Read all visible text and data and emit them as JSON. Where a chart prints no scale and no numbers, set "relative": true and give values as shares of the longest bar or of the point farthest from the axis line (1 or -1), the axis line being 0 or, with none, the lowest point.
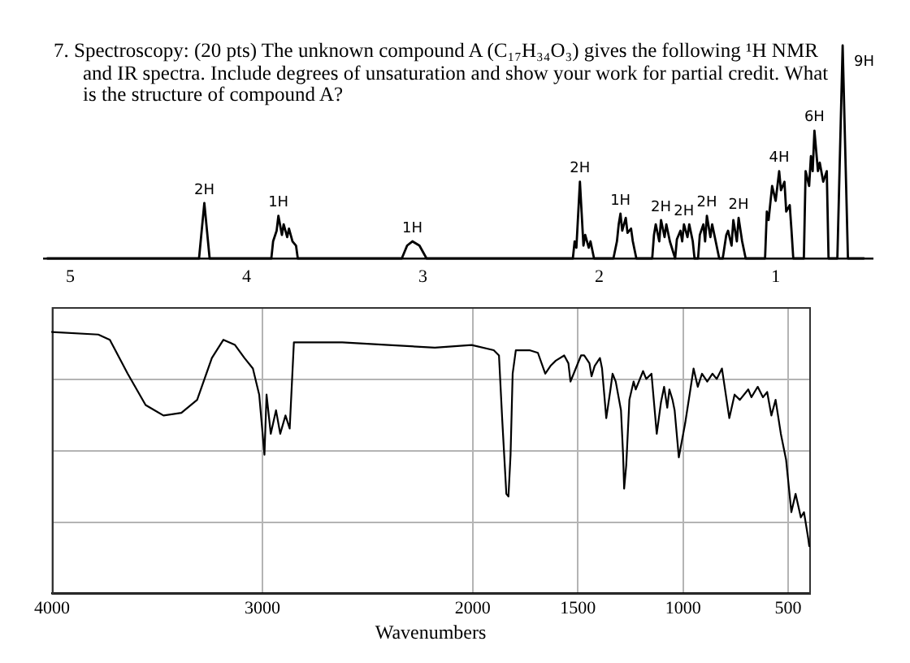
{
  "chart_data": [
    {
      "type": "line",
      "title": "7. Spectroscopy: (20 pts) The unknown compound A (C₁₇H₃₄O₃) gives the following ¹H NMR and IR spectra. Include degrees of unsaturation and show your work for partial credit. What is the structure of compound A?",
      "relative": true,
      "marker": "none",
      "x": [
        5.13,
        4.27,
        4.24,
        4.21,
        3.86,
        3.85,
        3.83,
        3.82,
        3.8,
        3.79,
        3.77,
        3.76,
        3.74,
        3.72,
        3.71,
        3.12,
        3.09,
        3.06,
        3.02,
        2.98,
        2.15,
        2.14,
        2.13,
        2.11,
        2.09,
        2.08,
        2.06,
        2.05,
        2.03,
        1.92,
        1.9,
        1.89,
        1.88,
        1.87,
        1.85,
        1.84,
        1.82,
        1.81,
        1.79,
        1.7,
        1.69,
        1.68,
        1.66,
        1.65,
        1.63,
        1.62,
        1.6,
        1.57,
        1.56,
        1.54,
        1.53,
        1.52,
        1.5,
        1.49,
        1.47,
        1.46,
        1.44,
        1.43,
        1.41,
        1.4,
        1.39,
        1.37,
        1.36,
        1.34,
        1.32,
        1.3,
        1.28,
        1.27,
        1.25,
        1.24,
        1.22,
        1.21,
        1.19,
        1.17,
        1.06,
        1.05,
        1.04,
        1.02,
        1.0,
        0.98,
        0.97,
        0.95,
        0.94,
        0.92,
        0.91,
        0.9,
        0.84,
        0.83,
        0.81,
        0.8,
        0.79,
        0.78,
        0.76,
        0.75,
        0.73,
        0.71,
        0.7,
        0.65,
        0.62,
        0.59,
        0.5
      ],
      "series": [
        {
          "color": "#000000",
          "values": [
            0,
            0,
            0.26,
            0,
            0,
            0.08,
            0.13,
            0.2,
            0.11,
            0.16,
            0.1,
            0.14,
            0.08,
            0.06,
            0,
            0,
            0.06,
            0.08,
            0.06,
            0,
            0,
            0.08,
            0.05,
            0.36,
            0.06,
            0.11,
            0.05,
            0.08,
            0,
            0,
            0.08,
            0.16,
            0.21,
            0.13,
            0.19,
            0.12,
            0.14,
            0.08,
            0,
            0,
            0.11,
            0.16,
            0.08,
            0.18,
            0.1,
            0.16,
            0.08,
            0,
            0.09,
            0.13,
            0.08,
            0.16,
            0.1,
            0.16,
            0.08,
            0,
            0,
            0.11,
            0.16,
            0.08,
            0.2,
            0.1,
            0.16,
            0.08,
            0,
            0,
            0.11,
            0.13,
            0.06,
            0.18,
            0.08,
            0.19,
            0.08,
            0,
            0,
            0.22,
            0.18,
            0.34,
            0.27,
            0.41,
            0.32,
            0.36,
            0.22,
            0.25,
            0.13,
            0,
            0,
            0.41,
            0.34,
            0.48,
            0.41,
            0.6,
            0.41,
            0.45,
            0.36,
            0.41,
            0,
            0,
            1,
            0,
            0
          ]
        }
      ],
      "xlim": [
        5.15,
        0.45
      ],
      "xticks": [
        5,
        4,
        3,
        2,
        1
      ],
      "annotations": [
        {
          "text": "2H",
          "x": 4.24,
          "y": 0.26
        },
        {
          "text": "1H",
          "x": 3.82,
          "y": 0.2
        },
        {
          "text": "1H",
          "x": 3.06,
          "y": 0.08
        },
        {
          "text": "2H",
          "x": 2.11,
          "y": 0.36
        },
        {
          "text": "1H",
          "x": 1.88,
          "y": 0.21
        },
        {
          "text": "2H",
          "x": 1.65,
          "y": 0.18
        },
        {
          "text": "2H",
          "x": 1.52,
          "y": 0.16
        },
        {
          "text": "2H",
          "x": 1.39,
          "y": 0.2
        },
        {
          "text": "2H",
          "x": 1.21,
          "y": 0.19
        },
        {
          "text": "4H",
          "x": 0.98,
          "y": 0.41
        },
        {
          "text": "6H",
          "x": 0.78,
          "y": 0.6
        },
        {
          "text": "9H",
          "x": 0.62,
          "y": 1
        }
      ]
    },
    {
      "type": "line",
      "relative": true,
      "marker": "none",
      "grid": true,
      "xlabel": "Wavenumbers",
      "x": [
        4000,
        3780,
        3725,
        3640,
        3555,
        3470,
        3385,
        3310,
        3240,
        3185,
        3130,
        3085,
        3045,
        3015,
        2990,
        2980,
        2960,
        2935,
        2915,
        2890,
        2870,
        2850,
        2620,
        2400,
        2180,
        2005,
        1900,
        1875,
        1860,
        1840,
        1830,
        1820,
        1810,
        1795,
        1730,
        1690,
        1655,
        1630,
        1605,
        1565,
        1545,
        1535,
        1515,
        1485,
        1470,
        1445,
        1435,
        1420,
        1395,
        1385,
        1365,
        1345,
        1335,
        1320,
        1295,
        1285,
        1280,
        1270,
        1255,
        1235,
        1225,
        1190,
        1175,
        1150,
        1125,
        1105,
        1090,
        1075,
        1065,
        1050,
        1040,
        1020,
        990,
        965,
        950,
        930,
        910,
        885,
        860,
        840,
        815,
        780,
        755,
        730,
        690,
        675,
        645,
        620,
        600,
        580,
        560,
        535,
        510,
        485,
        465,
        440,
        425,
        405,
        400
      ],
      "series": [
        {
          "color": "#000000",
          "values": [
            1.0,
            0.99,
            0.97,
            0.84,
            0.72,
            0.68,
            0.69,
            0.74,
            0.9,
            0.97,
            0.95,
            0.9,
            0.86,
            0.76,
            0.53,
            0.76,
            0.61,
            0.7,
            0.61,
            0.68,
            0.63,
            0.96,
            0.96,
            0.95,
            0.94,
            0.95,
            0.93,
            0.91,
            0.67,
            0.38,
            0.37,
            0.53,
            0.84,
            0.93,
            0.93,
            0.92,
            0.84,
            0.87,
            0.89,
            0.91,
            0.88,
            0.81,
            0.85,
            0.91,
            0.91,
            0.88,
            0.83,
            0.87,
            0.9,
            0.86,
            0.67,
            0.78,
            0.84,
            0.81,
            0.7,
            0.53,
            0.4,
            0.49,
            0.74,
            0.81,
            0.78,
            0.85,
            0.82,
            0.84,
            0.61,
            0.73,
            0.79,
            0.71,
            0.78,
            0.74,
            0.7,
            0.52,
            0.65,
            0.78,
            0.86,
            0.79,
            0.84,
            0.81,
            0.84,
            0.82,
            0.86,
            0.67,
            0.76,
            0.74,
            0.78,
            0.75,
            0.79,
            0.75,
            0.77,
            0.68,
            0.74,
            0.61,
            0.51,
            0.31,
            0.38,
            0.29,
            0.31,
            0.21,
            0.18
          ]
        }
      ],
      "xlim": [
        4000,
        400
      ],
      "xticks": [
        4000,
        3000,
        2000,
        1500,
        1000,
        500
      ]
    }
  ]
}
